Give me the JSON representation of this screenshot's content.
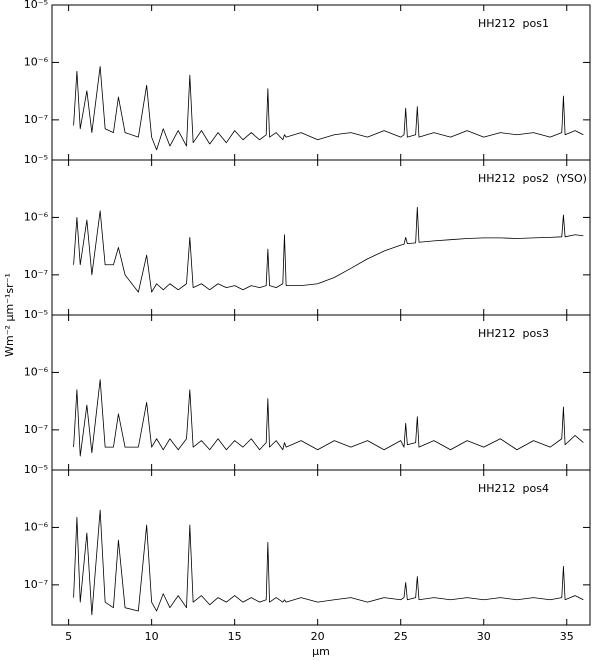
{
  "chart_data": [
    {
      "type": "line",
      "annotation": "HH212  pos1",
      "ylabel": "Wm⁻² µm⁻¹sr⁻¹",
      "color": "#000000",
      "yscale": "log",
      "x": [
        5.3,
        5.5,
        5.7,
        6.1,
        6.4,
        6.9,
        7.2,
        7.7,
        8.0,
        8.4,
        9.2,
        9.7,
        10.0,
        10.3,
        10.7,
        11.1,
        11.6,
        12.1,
        12.3,
        12.5,
        13,
        13.5,
        14,
        14.5,
        15,
        15.5,
        16,
        16.5,
        16.9,
        17.0,
        17.1,
        17.5,
        17.9,
        18.0,
        18.1,
        19,
        20,
        21,
        22,
        23,
        24,
        25,
        25.2,
        25.3,
        25.4,
        25.9,
        26.0,
        26.1,
        27,
        28,
        29,
        30,
        31,
        32,
        33,
        34,
        34.7,
        34.8,
        34.9,
        35.5,
        36
      ],
      "values": [
        8e-08,
        7e-07,
        7e-08,
        3.2e-07,
        6e-08,
        8.5e-07,
        7e-08,
        6e-08,
        2.5e-07,
        6e-08,
        5e-08,
        4e-07,
        5e-08,
        3e-08,
        7e-08,
        3.5e-08,
        6.5e-08,
        3.5e-08,
        6e-07,
        4e-08,
        6.5e-08,
        3.8e-08,
        6e-08,
        4e-08,
        6.5e-08,
        4.5e-08,
        6e-08,
        4.5e-08,
        5.5e-08,
        3.5e-07,
        5e-08,
        6e-08,
        4.5e-08,
        5.5e-08,
        5e-08,
        6e-08,
        4.5e-08,
        5.5e-08,
        6e-08,
        5e-08,
        6.5e-08,
        5e-08,
        5.5e-08,
        1.6e-07,
        5e-08,
        5.5e-08,
        1.7e-07,
        5e-08,
        6e-08,
        5e-08,
        6.5e-08,
        5e-08,
        6e-08,
        5.5e-08,
        6e-08,
        5e-08,
        6e-08,
        2.6e-07,
        5.5e-08,
        6.5e-08,
        5.5e-08
      ],
      "xlim": [
        4,
        36.4
      ],
      "xticks": [
        5,
        10,
        15,
        20,
        25,
        30,
        35
      ],
      "ylim": [
        2e-08,
        1e-05
      ],
      "yticks": [
        {
          "value": 1e-05,
          "label": "10⁻⁵"
        },
        {
          "value": 1e-06,
          "label": "10⁻⁶"
        },
        {
          "value": 1e-07,
          "label": "10⁻⁷"
        }
      ]
    },
    {
      "type": "line",
      "annotation": "HH212  pos2  (YSO)",
      "color": "#000000",
      "yscale": "log",
      "x": [
        5.3,
        5.5,
        5.7,
        6.1,
        6.4,
        6.9,
        7.2,
        7.7,
        8.0,
        8.4,
        9.2,
        9.7,
        10.0,
        10.3,
        10.7,
        11.1,
        11.6,
        12.1,
        12.3,
        12.5,
        13,
        13.5,
        14,
        14.5,
        15,
        15.5,
        16,
        16.5,
        16.9,
        17.0,
        17.1,
        17.5,
        17.9,
        18.0,
        18.1,
        19,
        20,
        21,
        22,
        23,
        24,
        25,
        25.2,
        25.3,
        25.4,
        25.9,
        26.0,
        26.1,
        27,
        28,
        29,
        30,
        31,
        32,
        33,
        34,
        34.7,
        34.8,
        34.9,
        35.5,
        36
      ],
      "values": [
        1.5e-07,
        1e-06,
        1.5e-07,
        9e-07,
        1e-07,
        1.3e-06,
        1.5e-07,
        1.5e-07,
        3e-07,
        1e-07,
        5e-08,
        2.2e-07,
        5e-08,
        7e-08,
        5.5e-08,
        7e-08,
        5.5e-08,
        7e-08,
        4.5e-07,
        6e-08,
        7e-08,
        5.5e-08,
        7e-08,
        6e-08,
        6.5e-08,
        5.5e-08,
        6.5e-08,
        6e-08,
        6.5e-08,
        2.8e-07,
        6.5e-08,
        6e-08,
        7e-08,
        5e-07,
        6.5e-08,
        6.5e-08,
        7e-08,
        9e-08,
        1.3e-07,
        1.9e-07,
        2.6e-07,
        3.3e-07,
        3.4e-07,
        4.5e-07,
        3.5e-07,
        3.6e-07,
        1.5e-06,
        3.7e-07,
        3.9e-07,
        4.1e-07,
        4.3e-07,
        4.4e-07,
        4.4e-07,
        4.3e-07,
        4.4e-07,
        4.5e-07,
        4.6e-07,
        1.1e-06,
        4.6e-07,
        5e-07,
        4.8e-07
      ],
      "xlim": [
        4,
        36.4
      ],
      "xticks": [
        5,
        10,
        15,
        20,
        25,
        30,
        35
      ],
      "ylim": [
        2e-08,
        1e-05
      ],
      "yticks": [
        {
          "value": 1e-05,
          "label": "10⁻⁵"
        },
        {
          "value": 1e-06,
          "label": "10⁻⁶"
        },
        {
          "value": 1e-07,
          "label": "10⁻⁷"
        }
      ]
    },
    {
      "type": "line",
      "annotation": "HH212  pos3",
      "color": "#000000",
      "yscale": "log",
      "x": [
        5.3,
        5.5,
        5.7,
        6.1,
        6.4,
        6.9,
        7.2,
        7.7,
        8.0,
        8.4,
        9.2,
        9.7,
        10.0,
        10.3,
        10.7,
        11.1,
        11.6,
        12.1,
        12.3,
        12.5,
        13,
        13.5,
        14,
        14.5,
        15,
        15.5,
        16,
        16.5,
        16.9,
        17.0,
        17.1,
        17.5,
        17.9,
        18.0,
        18.1,
        19,
        20,
        21,
        22,
        23,
        24,
        25,
        25.2,
        25.3,
        25.4,
        25.9,
        26.0,
        26.1,
        27,
        28,
        29,
        30,
        31,
        32,
        33,
        34,
        34.7,
        34.8,
        34.9,
        35.5,
        36
      ],
      "values": [
        5e-08,
        5e-07,
        3.5e-08,
        2.7e-07,
        4e-08,
        7.5e-07,
        5e-08,
        5e-08,
        1.9e-07,
        5e-08,
        5e-08,
        3e-07,
        5e-08,
        7e-08,
        4.5e-08,
        7e-08,
        4.5e-08,
        7e-08,
        5e-07,
        5e-08,
        6.5e-08,
        4.5e-08,
        7e-08,
        4.5e-08,
        6.5e-08,
        5e-08,
        7e-08,
        4.5e-08,
        6e-08,
        3.5e-07,
        5e-08,
        6.5e-08,
        4.5e-08,
        6e-08,
        5e-08,
        6.5e-08,
        4.5e-08,
        6.5e-08,
        5e-08,
        6.5e-08,
        4.5e-08,
        6.5e-08,
        5e-08,
        1.3e-07,
        5.5e-08,
        6e-08,
        1.7e-07,
        5e-08,
        6.5e-08,
        4.5e-08,
        6.5e-08,
        5e-08,
        7e-08,
        4.5e-08,
        6.5e-08,
        5e-08,
        7e-08,
        2.5e-07,
        5.5e-08,
        8e-08,
        6e-08
      ],
      "xlim": [
        4,
        36.4
      ],
      "xticks": [
        5,
        10,
        15,
        20,
        25,
        30,
        35
      ],
      "ylim": [
        2e-08,
        1e-05
      ],
      "yticks": [
        {
          "value": 1e-05,
          "label": "10⁻⁵"
        },
        {
          "value": 1e-06,
          "label": "10⁻⁶"
        },
        {
          "value": 1e-07,
          "label": "10⁻⁷"
        }
      ]
    },
    {
      "type": "line",
      "annotation": "HH212  pos4",
      "xlabel": "µm",
      "color": "#000000",
      "yscale": "log",
      "x": [
        5.3,
        5.5,
        5.7,
        6.1,
        6.4,
        6.9,
        7.2,
        7.7,
        8.0,
        8.4,
        9.2,
        9.7,
        10.0,
        10.3,
        10.7,
        11.1,
        11.6,
        12.1,
        12.3,
        12.5,
        13,
        13.5,
        14,
        14.5,
        15,
        15.5,
        16,
        16.5,
        16.9,
        17.0,
        17.1,
        17.5,
        17.9,
        18.0,
        18.1,
        19,
        20,
        21,
        22,
        23,
        24,
        25,
        25.2,
        25.3,
        25.4,
        25.9,
        26.0,
        26.1,
        27,
        28,
        29,
        30,
        31,
        32,
        33,
        34,
        34.7,
        34.8,
        34.9,
        35.5,
        36
      ],
      "values": [
        6e-08,
        1.5e-06,
        5e-08,
        8e-07,
        3e-08,
        2e-06,
        5e-08,
        4e-08,
        6e-07,
        4e-08,
        3.5e-08,
        1.1e-06,
        5e-08,
        3.5e-08,
        7e-08,
        4e-08,
        6.5e-08,
        4e-08,
        1.1e-06,
        5e-08,
        6.5e-08,
        4.5e-08,
        6e-08,
        5e-08,
        6.5e-08,
        5e-08,
        6e-08,
        5e-08,
        5.5e-08,
        5.5e-07,
        5e-08,
        6e-08,
        5e-08,
        5.5e-08,
        5e-08,
        6e-08,
        5e-08,
        5.5e-08,
        6e-08,
        5e-08,
        6e-08,
        5.5e-08,
        6e-08,
        1.1e-07,
        5.5e-08,
        6e-08,
        1.4e-07,
        5.5e-08,
        6e-08,
        5.5e-08,
        6e-08,
        5.5e-08,
        6e-08,
        5.5e-08,
        6e-08,
        5.5e-08,
        6e-08,
        2.1e-07,
        5.5e-08,
        6.5e-08,
        5.5e-08
      ],
      "xlim": [
        4,
        36.4
      ],
      "xticks": [
        5,
        10,
        15,
        20,
        25,
        30,
        35
      ],
      "ylim": [
        2e-08,
        1e-05
      ],
      "yticks": [
        {
          "value": 1e-05,
          "label": "10⁻⁵"
        },
        {
          "value": 1e-06,
          "label": "10⁻⁶"
        },
        {
          "value": 1e-07,
          "label": "10⁻⁷"
        }
      ]
    }
  ]
}
